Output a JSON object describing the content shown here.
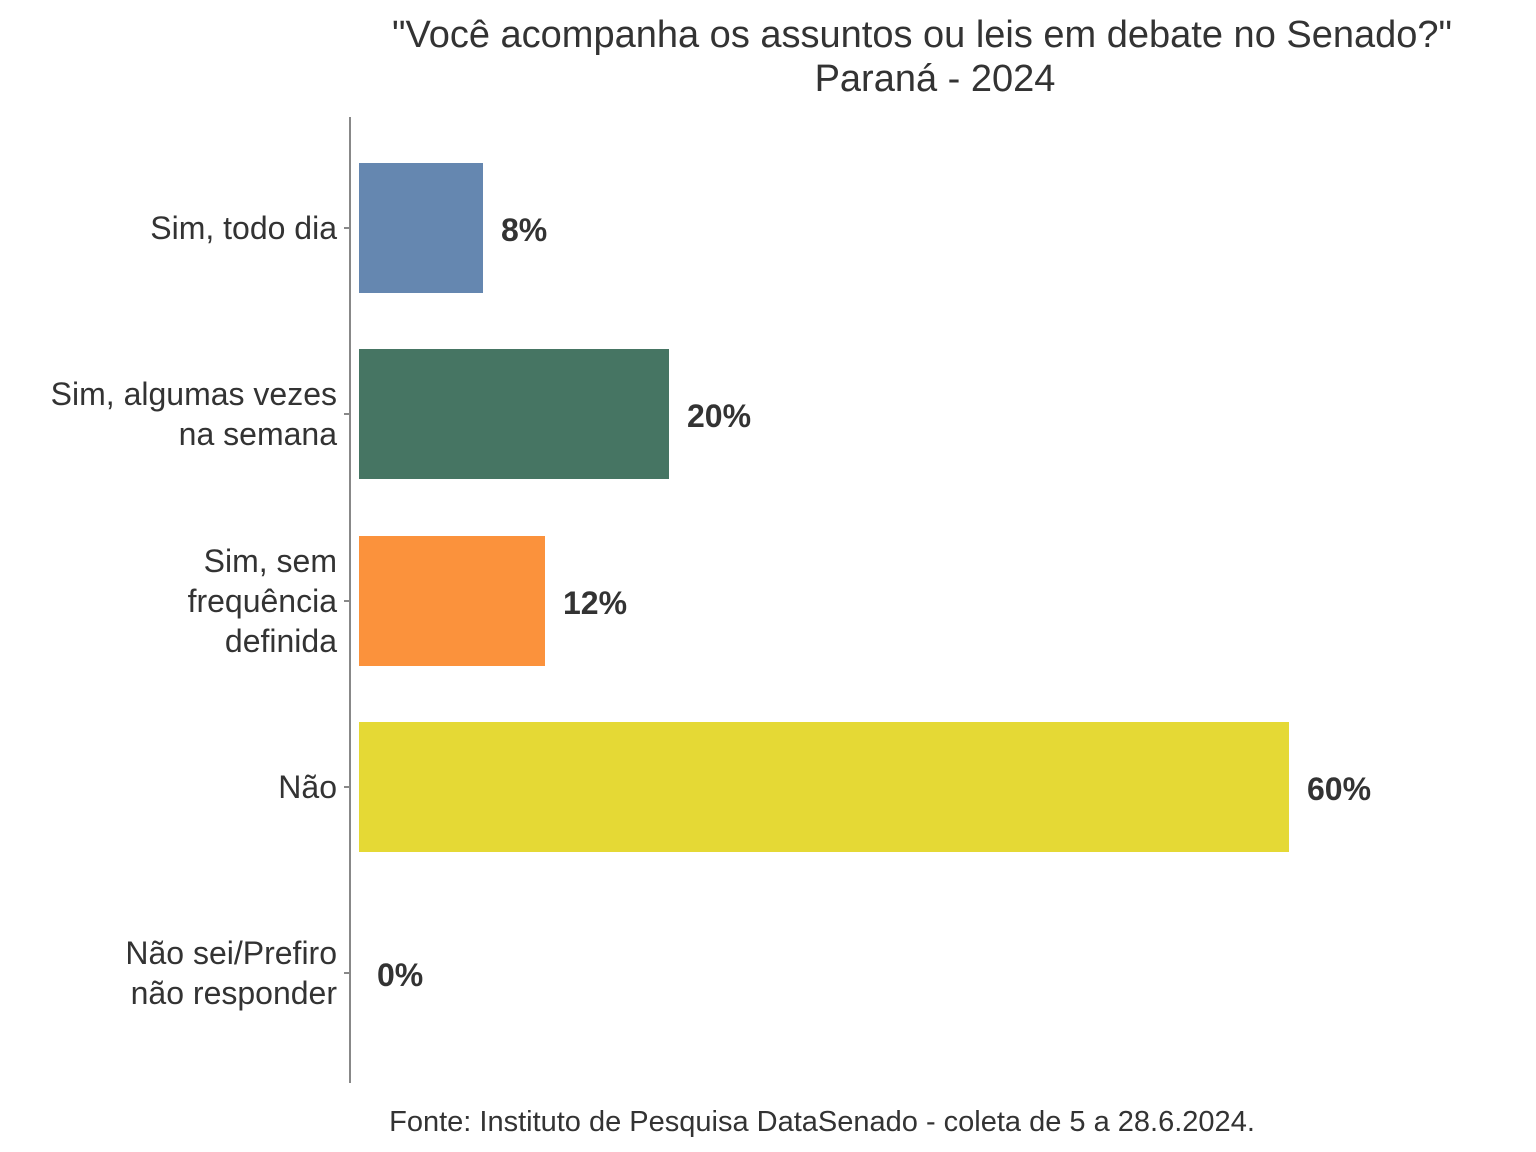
{
  "chart_data": {
    "type": "bar",
    "orientation": "horizontal",
    "title": "\"Você acompanha os assuntos ou leis em debate no Senado?\"",
    "subtitle": "Paraná - 2024",
    "categories": [
      [
        "Sim, todo dia"
      ],
      [
        "Sim, algumas vezes",
        "na semana"
      ],
      [
        "Sim, sem",
        "frequência",
        "definida"
      ],
      [
        "Não"
      ],
      [
        "Não sei/Prefiro",
        "não responder"
      ]
    ],
    "values": [
      8,
      20,
      12,
      60,
      0
    ],
    "value_labels": [
      "8%",
      "20%",
      "12%",
      "60%",
      "0%"
    ],
    "colors": [
      "#6587b0",
      "#467563",
      "#fb923c",
      "#e5d935",
      "#cccccc"
    ],
    "unit": "%",
    "xlim": [
      0,
      62
    ],
    "grid": false,
    "legend": "none"
  },
  "caption": "Fonte: Instituto de Pesquisa DataSenado - coleta de 5 a 28.6.2024."
}
